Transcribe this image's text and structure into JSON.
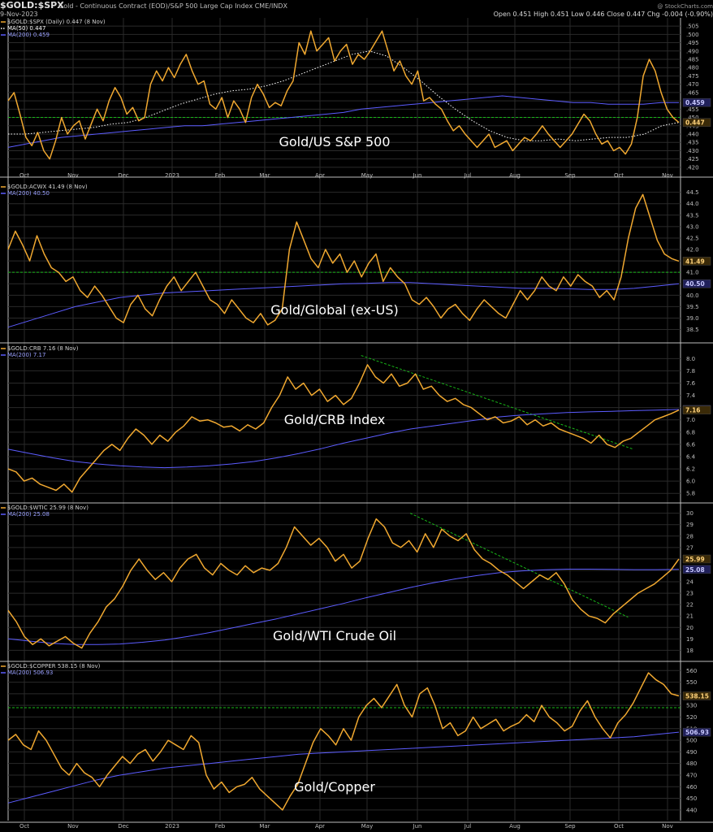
{
  "header": {
    "symbol": "$GOLD:$SPX",
    "description": "Gold - Continuous Contract (EOD)/S&P 500 Large Cap Index  CME/INDX",
    "date": "9-Nov-2023",
    "ohlc": "Open 0.451  High 0.451  Low 0.446  Close 0.447  Chg -0.004 (-0.90%)",
    "ohlc_change_color": "#d83030",
    "watermark": "@ StockCharts.com"
  },
  "colors": {
    "price": "#f0a830",
    "ma200": "#5c5cff",
    "ma50": "#ffffff",
    "guide": "#18b818",
    "background": "#000000",
    "grid": "#2a2a2a",
    "divider": "#bdbdbd"
  },
  "x_labels": [
    "Oct",
    "Nov",
    "Dec",
    "2023",
    "Feb",
    "Mar",
    "Apr",
    "May",
    "Jun",
    "Jul",
    "Aug",
    "Sep",
    "Oct",
    "Nov"
  ],
  "chart_data": [
    {
      "type": "line",
      "panel_id": "spx",
      "title": "Gold/US S&P 500",
      "legend": [
        {
          "text": "$GOLD:$SPX (Daily) 0.447 (8 Nov)",
          "color": "#f0a830"
        },
        {
          "text": "MA(50) 0.447",
          "color": "#ffffff"
        },
        {
          "text": "MA(200) 0.459",
          "color": "#5c5cff"
        }
      ],
      "ylim": [
        0.418,
        0.507
      ],
      "ticks": [
        0.505,
        0.5,
        0.495,
        0.49,
        0.485,
        0.48,
        0.475,
        0.47,
        0.465,
        0.46,
        0.455,
        0.45,
        0.445,
        0.44,
        0.435,
        0.43,
        0.425,
        0.42
      ],
      "tick_labels": [
        ".505",
        ".500",
        ".495",
        ".490",
        ".485",
        ".480",
        ".475",
        ".470",
        ".465",
        ".460",
        ".455",
        ".450",
        ".445",
        ".440",
        ".435",
        ".430",
        ".425",
        ".420"
      ],
      "price": [
        0.46,
        0.465,
        0.452,
        0.438,
        0.433,
        0.441,
        0.43,
        0.425,
        0.436,
        0.45,
        0.44,
        0.445,
        0.448,
        0.437,
        0.446,
        0.455,
        0.448,
        0.46,
        0.468,
        0.462,
        0.452,
        0.456,
        0.448,
        0.45,
        0.47,
        0.478,
        0.472,
        0.48,
        0.474,
        0.482,
        0.488,
        0.478,
        0.47,
        0.472,
        0.458,
        0.455,
        0.462,
        0.45,
        0.46,
        0.455,
        0.447,
        0.462,
        0.47,
        0.464,
        0.456,
        0.459,
        0.457,
        0.466,
        0.472,
        0.495,
        0.488,
        0.502,
        0.49,
        0.494,
        0.498,
        0.484,
        0.49,
        0.494,
        0.482,
        0.488,
        0.485,
        0.49,
        0.496,
        0.502,
        0.49,
        0.478,
        0.484,
        0.475,
        0.47,
        0.478,
        0.46,
        0.462,
        0.458,
        0.455,
        0.448,
        0.442,
        0.445,
        0.44,
        0.436,
        0.432,
        0.436,
        0.44,
        0.432,
        0.434,
        0.436,
        0.43,
        0.434,
        0.438,
        0.436,
        0.44,
        0.445,
        0.44,
        0.436,
        0.432,
        0.436,
        0.44,
        0.446,
        0.452,
        0.448,
        0.44,
        0.434,
        0.436,
        0.43,
        0.432,
        0.428,
        0.434,
        0.45,
        0.475,
        0.485,
        0.478,
        0.465,
        0.455,
        0.45,
        0.447
      ],
      "ma200": [
        0.432,
        0.434,
        0.436,
        0.438,
        0.439,
        0.44,
        0.441,
        0.442,
        0.443,
        0.444,
        0.445,
        0.445,
        0.446,
        0.447,
        0.448,
        0.449,
        0.45,
        0.451,
        0.452,
        0.453,
        0.455,
        0.456,
        0.457,
        0.458,
        0.459,
        0.46,
        0.461,
        0.462,
        0.463,
        0.462,
        0.461,
        0.46,
        0.459,
        0.459,
        0.458,
        0.458,
        0.458,
        0.459,
        0.459
      ],
      "ma50": [
        0.44,
        0.44,
        0.441,
        0.442,
        0.443,
        0.444,
        0.446,
        0.447,
        0.45,
        0.454,
        0.458,
        0.461,
        0.464,
        0.466,
        0.467,
        0.469,
        0.472,
        0.476,
        0.48,
        0.484,
        0.488,
        0.49,
        0.487,
        0.48,
        0.472,
        0.463,
        0.455,
        0.448,
        0.442,
        0.438,
        0.436,
        0.436,
        0.437,
        0.436,
        0.437,
        0.438,
        0.438,
        0.44,
        0.445,
        0.447
      ],
      "hline": 0.45,
      "last_value": "0.447",
      "ma_value": "0.459"
    },
    {
      "type": "line",
      "panel_id": "acwx",
      "title": "Gold/Global (ex-US)",
      "legend": [
        {
          "text": "$GOLD:ACWX 41.49 (8 Nov)",
          "color": "#f0a830"
        },
        {
          "text": "MA(200) 40.50",
          "color": "#5c5cff"
        }
      ],
      "ylim": [
        38.2,
        44.7
      ],
      "ticks": [
        44.5,
        44.0,
        43.5,
        43.0,
        42.5,
        42.0,
        41.5,
        41.0,
        40.5,
        40.0,
        39.5,
        39.0,
        38.5
      ],
      "tick_labels": [
        "44.5",
        "44.0",
        "43.5",
        "43.0",
        "42.5",
        "42.0",
        "41.5",
        "41.0",
        "40.5",
        "40.0",
        "39.5",
        "39.0",
        "38.5"
      ],
      "price": [
        42.0,
        42.8,
        42.2,
        41.5,
        42.6,
        41.8,
        41.2,
        41.0,
        40.6,
        40.8,
        40.2,
        39.9,
        40.4,
        40.0,
        39.5,
        39.0,
        38.8,
        39.6,
        40.0,
        39.4,
        39.1,
        39.8,
        40.4,
        40.8,
        40.2,
        40.6,
        41.0,
        40.4,
        39.8,
        39.6,
        39.2,
        39.8,
        39.4,
        39.0,
        38.8,
        39.2,
        38.7,
        38.9,
        39.4,
        42.0,
        43.2,
        42.4,
        41.6,
        41.2,
        42.0,
        41.4,
        41.8,
        41.0,
        41.5,
        40.8,
        41.4,
        41.8,
        40.6,
        41.2,
        40.8,
        40.5,
        39.8,
        39.6,
        39.9,
        39.5,
        39.0,
        39.4,
        39.6,
        39.2,
        38.9,
        39.4,
        39.8,
        39.5,
        39.2,
        39.0,
        39.6,
        40.2,
        39.8,
        40.2,
        40.8,
        40.4,
        40.2,
        40.8,
        40.4,
        40.9,
        40.6,
        40.4,
        39.9,
        40.2,
        39.8,
        40.8,
        42.5,
        43.8,
        44.4,
        43.4,
        42.4,
        41.8,
        41.6,
        41.49
      ],
      "ma200": [
        38.6,
        38.9,
        39.2,
        39.5,
        39.7,
        39.9,
        40.0,
        40.1,
        40.15,
        40.2,
        40.25,
        40.3,
        40.35,
        40.4,
        40.45,
        40.5,
        40.52,
        40.55,
        40.55,
        40.5,
        40.45,
        40.4,
        40.35,
        40.3,
        40.3,
        40.28,
        40.25,
        40.25,
        40.3,
        40.4,
        40.5
      ],
      "hline": 41.0,
      "last_value": "41.49",
      "ma_value": "40.50"
    },
    {
      "type": "line",
      "panel_id": "crb",
      "title": "Gold/CRB Index",
      "legend": [
        {
          "text": "$GOLD:CRB 7.16 (8 Nov)",
          "color": "#f0a830"
        },
        {
          "text": "MA(200) 7.17",
          "color": "#5c5cff"
        }
      ],
      "ylim": [
        5.75,
        8.15
      ],
      "ticks": [
        8.0,
        7.8,
        7.6,
        7.4,
        7.2,
        7.0,
        6.8,
        6.6,
        6.4,
        6.2,
        6.0,
        5.8
      ],
      "tick_labels": [
        "8.0",
        "7.8",
        "7.6",
        "7.4",
        "7.2",
        "7.0",
        "6.8",
        "6.6",
        "6.4",
        "6.2",
        "6.0",
        "5.8"
      ],
      "price": [
        6.2,
        6.15,
        6.0,
        6.05,
        5.95,
        5.9,
        5.85,
        5.95,
        5.82,
        6.05,
        6.2,
        6.35,
        6.5,
        6.6,
        6.5,
        6.7,
        6.85,
        6.75,
        6.6,
        6.75,
        6.65,
        6.8,
        6.9,
        7.05,
        6.98,
        7.0,
        6.95,
        6.88,
        6.9,
        6.82,
        6.92,
        6.85,
        6.95,
        7.2,
        7.4,
        7.7,
        7.5,
        7.6,
        7.4,
        7.5,
        7.3,
        7.4,
        7.25,
        7.35,
        7.6,
        7.9,
        7.7,
        7.6,
        7.75,
        7.55,
        7.6,
        7.75,
        7.5,
        7.55,
        7.4,
        7.3,
        7.35,
        7.25,
        7.2,
        7.1,
        7.0,
        7.05,
        6.95,
        6.98,
        7.05,
        6.92,
        7.0,
        6.9,
        6.95,
        6.85,
        6.8,
        6.75,
        6.7,
        6.62,
        6.75,
        6.6,
        6.55,
        6.65,
        6.7,
        6.8,
        6.9,
        7.0,
        7.05,
        7.1,
        7.16
      ],
      "ma200": [
        6.52,
        6.45,
        6.38,
        6.32,
        6.28,
        6.25,
        6.23,
        6.22,
        6.23,
        6.25,
        6.28,
        6.32,
        6.38,
        6.45,
        6.53,
        6.62,
        6.7,
        6.78,
        6.85,
        6.9,
        6.95,
        7.0,
        7.05,
        7.08,
        7.1,
        7.12,
        7.13,
        7.14,
        7.15,
        7.16,
        7.17
      ],
      "trendline": {
        "x": [
          0.525,
          0.93
        ],
        "y": [
          8.05,
          6.52
        ]
      },
      "last_value": "7.16",
      "ma_value": "7.17"
    },
    {
      "type": "line",
      "panel_id": "wtic",
      "title": "Gold/WTI Crude Oil",
      "legend": [
        {
          "text": "$GOLD:$WTIC 25.99 (8 Nov)",
          "color": "#f0a830"
        },
        {
          "text": "MA(200) 25.08",
          "color": "#5c5cff"
        }
      ],
      "ylim": [
        17.6,
        30.4
      ],
      "ticks": [
        30,
        29,
        28,
        27,
        26,
        25,
        24,
        23,
        22,
        21,
        20,
        19,
        18
      ],
      "tick_labels": [
        "30",
        "29",
        "28",
        "27",
        "26",
        "25",
        "24",
        "23",
        "22",
        "21",
        "20",
        "19",
        "18"
      ],
      "price": [
        21.5,
        20.5,
        19.2,
        18.5,
        19.0,
        18.4,
        18.8,
        19.2,
        18.6,
        18.2,
        19.5,
        20.5,
        21.8,
        22.5,
        23.6,
        25.0,
        26.0,
        25.0,
        24.2,
        24.8,
        24.0,
        25.2,
        26.0,
        26.4,
        25.2,
        24.6,
        25.6,
        25.0,
        24.6,
        25.4,
        24.8,
        25.2,
        25.0,
        25.6,
        27.0,
        28.8,
        28.0,
        27.2,
        27.8,
        27.0,
        25.8,
        26.4,
        25.2,
        25.8,
        27.8,
        29.5,
        28.8,
        27.4,
        27.0,
        27.6,
        26.6,
        28.2,
        27.0,
        28.6,
        28.0,
        27.6,
        28.2,
        26.8,
        26.0,
        25.6,
        25.0,
        24.6,
        24.0,
        23.4,
        24.0,
        24.6,
        24.2,
        24.8,
        23.8,
        22.4,
        21.6,
        21.0,
        20.8,
        20.4,
        21.2,
        21.8,
        22.4,
        23.0,
        23.4,
        23.8,
        24.4,
        25.0,
        25.99
      ],
      "ma200": [
        19.0,
        18.8,
        18.6,
        18.5,
        18.5,
        18.55,
        18.7,
        18.9,
        19.2,
        19.55,
        19.95,
        20.35,
        20.75,
        21.2,
        21.65,
        22.1,
        22.6,
        23.05,
        23.5,
        23.9,
        24.25,
        24.55,
        24.8,
        24.95,
        25.05,
        25.1,
        25.1,
        25.08,
        25.06,
        25.06,
        25.08
      ],
      "trendline": {
        "x": [
          0.598,
          0.922
        ],
        "y": [
          30.0,
          20.9
        ]
      },
      "last_value": "25.99",
      "ma_value": "25.08"
    },
    {
      "type": "line",
      "panel_id": "copper",
      "title": "Gold/Copper",
      "legend": [
        {
          "text": "$GOLD:$COPPER 538.15 (8 Nov)",
          "color": "#f0a830"
        },
        {
          "text": "MA(200) 506.93",
          "color": "#5c5cff"
        }
      ],
      "ylim": [
        435,
        563
      ],
      "ticks": [
        560,
        550,
        540,
        530,
        520,
        510,
        500,
        490,
        480,
        470,
        460,
        450,
        440
      ],
      "tick_labels": [
        "560",
        "550",
        "540",
        "530",
        "520",
        "510",
        "500",
        "490",
        "480",
        "470",
        "460",
        "450",
        "440"
      ],
      "price": [
        500,
        505,
        496,
        492,
        508,
        500,
        488,
        476,
        470,
        480,
        472,
        468,
        460,
        470,
        478,
        486,
        480,
        488,
        492,
        482,
        490,
        500,
        496,
        492,
        504,
        498,
        470,
        458,
        464,
        455,
        460,
        462,
        468,
        458,
        452,
        446,
        440,
        452,
        462,
        480,
        498,
        510,
        504,
        496,
        510,
        500,
        520,
        530,
        536,
        528,
        538,
        548,
        530,
        520,
        540,
        545,
        530,
        510,
        515,
        504,
        508,
        520,
        510,
        514,
        518,
        508,
        512,
        515,
        522,
        516,
        530,
        520,
        515,
        508,
        512,
        525,
        534,
        520,
        510,
        502,
        515,
        522,
        532,
        545,
        558,
        552,
        548,
        540,
        538.15
      ],
      "ma200": [
        446,
        451,
        456,
        461,
        466,
        470,
        473,
        476,
        478,
        480,
        482,
        484,
        486,
        488,
        489,
        490,
        491,
        492,
        493,
        494,
        495,
        496,
        497,
        498,
        499,
        500,
        501,
        502,
        503,
        505,
        507
      ],
      "hline": 528,
      "last_value": "538.15",
      "ma_value": "506.93"
    }
  ]
}
